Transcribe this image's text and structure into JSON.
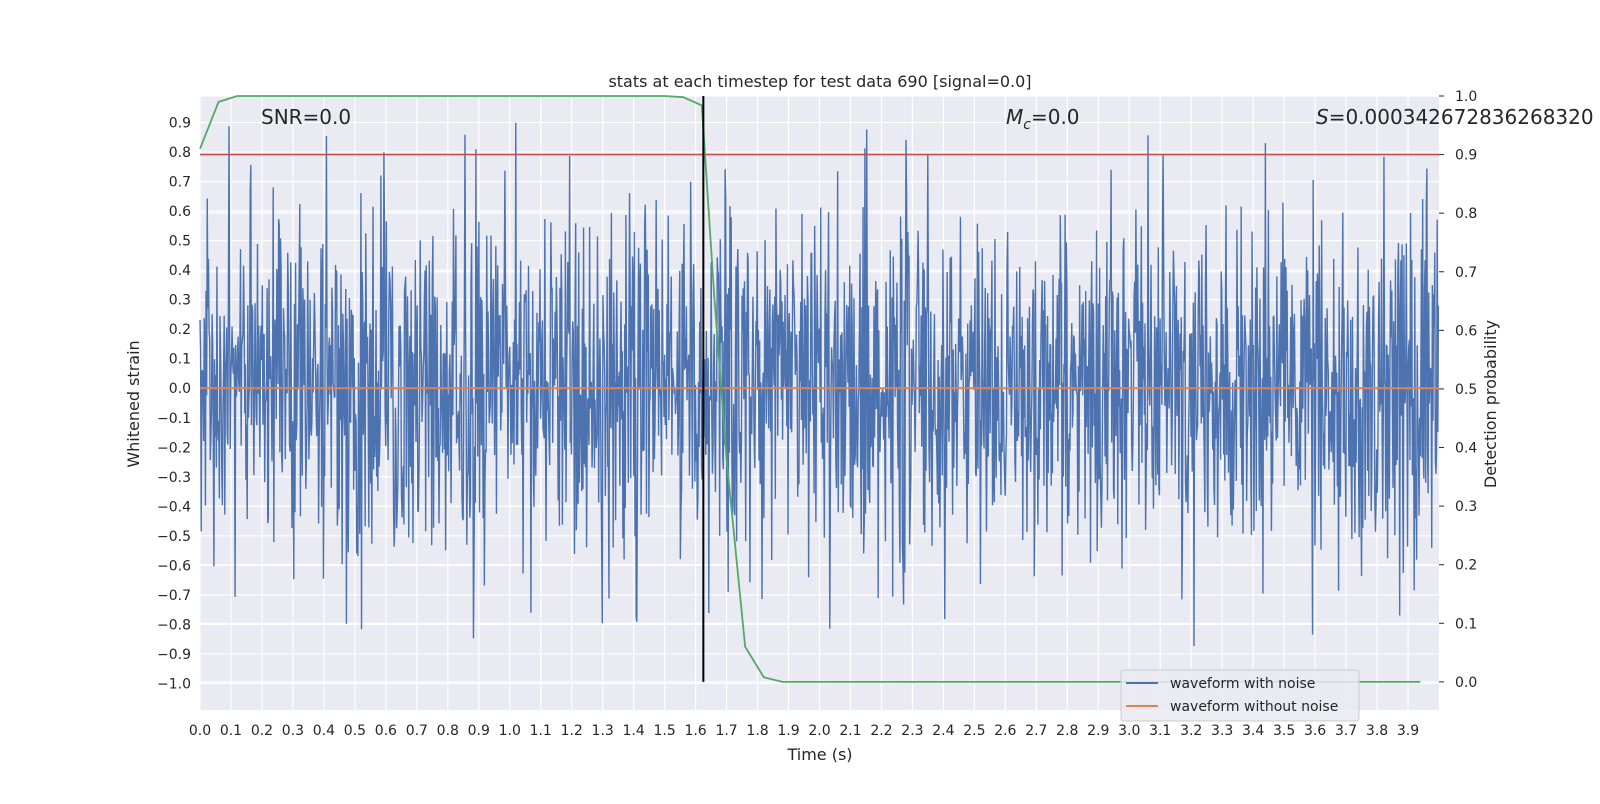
{
  "chart_data": {
    "type": "line",
    "title": "stats at each timestep for test data 690 [signal=0.0]",
    "xlabel": "Time (s)",
    "ylabel": "Whitened strain",
    "y2label": "Detection probability",
    "xlim": [
      0.0,
      4.0
    ],
    "ylim": [
      -1.09,
      0.99
    ],
    "y2lim": [
      -0.048,
      1.0
    ],
    "x_ticks": [
      "0.0",
      "0.1",
      "0.2",
      "0.3",
      "0.4",
      "0.5",
      "0.6",
      "0.7",
      "0.8",
      "0.9",
      "1.0",
      "1.1",
      "1.2",
      "1.3",
      "1.4",
      "1.5",
      "1.6",
      "1.7",
      "1.8",
      "1.9",
      "2.0",
      "2.1",
      "2.2",
      "2.3",
      "2.4",
      "2.5",
      "2.6",
      "2.7",
      "2.8",
      "2.9",
      "3.0",
      "3.1",
      "3.2",
      "3.3",
      "3.4",
      "3.5",
      "3.6",
      "3.7",
      "3.8",
      "3.9"
    ],
    "y_ticks": [
      "0.9",
      "0.8",
      "0.7",
      "0.6",
      "0.5",
      "0.4",
      "0.3",
      "0.2",
      "0.1",
      "0.0",
      "−0.1",
      "−0.2",
      "−0.3",
      "−0.4",
      "−0.5",
      "−0.6",
      "−0.7",
      "−0.8",
      "−0.9",
      "−1.0"
    ],
    "y2_ticks": [
      "1.0",
      "0.9",
      "0.8",
      "0.7",
      "0.6",
      "0.5",
      "0.4",
      "0.3",
      "0.2",
      "0.1",
      "0.0"
    ],
    "grid": true,
    "background": "#eaeaf2",
    "noise_series": {
      "name": "waveform with noise",
      "color": "#4c72b0",
      "description_range": [
        -1.0,
        0.9
      ],
      "seed": 690
    },
    "series": [
      {
        "name": "waveform without noise",
        "color": "#dd8452",
        "x": [
          0.0,
          4.0
        ],
        "y": [
          0.0,
          0.0
        ]
      }
    ],
    "probability_series": {
      "color": "#55a868",
      "x": [
        0.0,
        0.06,
        0.12,
        0.18,
        0.24,
        0.3,
        0.6,
        0.9,
        1.2,
        1.5,
        1.56,
        1.62,
        1.66,
        1.7,
        1.76,
        1.82,
        1.88,
        2.0,
        3.94
      ],
      "y": [
        0.91,
        0.99,
        1.0,
        1.0,
        1.0,
        1.0,
        1.0,
        1.0,
        1.0,
        1.0,
        0.998,
        0.984,
        0.66,
        0.38,
        0.06,
        0.008,
        0.0,
        0.0,
        0.0
      ]
    },
    "threshold": {
      "value": 0.9,
      "axis": "right",
      "color": "#c44e52"
    },
    "marker_line": {
      "x": 1.625,
      "color": "#000000"
    },
    "annotations": {
      "snr": "SNR=0.0",
      "mc_symbol": "M",
      "mc_sub": "c",
      "mc_value": "=0.0",
      "s_symbol": "S",
      "s_value": "=0.000342672836268320"
    },
    "legend": {
      "position": "lower-right",
      "entries": [
        {
          "label": "waveform with noise",
          "color": "#4c72b0"
        },
        {
          "label": "waveform without noise",
          "color": "#dd8452"
        }
      ]
    }
  }
}
